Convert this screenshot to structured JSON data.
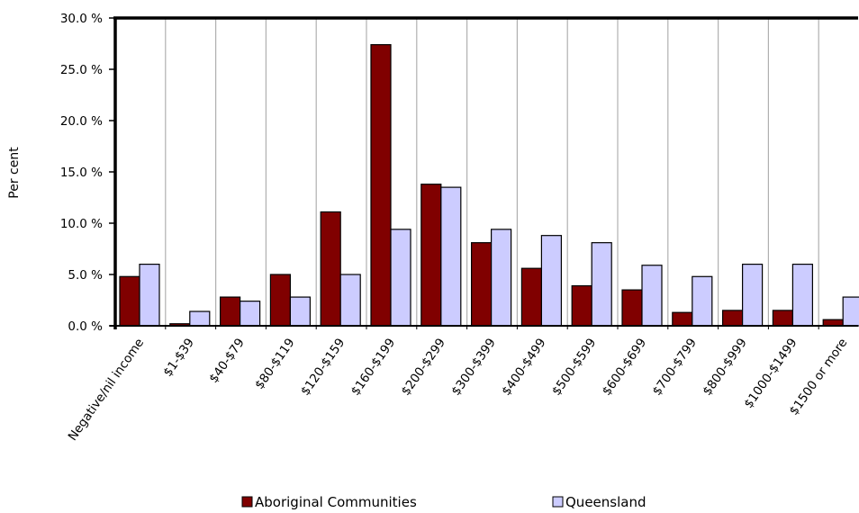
{
  "chart_data": {
    "type": "bar",
    "ylabel": "Per cent",
    "ylim": [
      0,
      30
    ],
    "ytick_step": 5,
    "ytick_labels": [
      "0.0 %",
      "5.0 %",
      "10.0 %",
      "15.0 %",
      "20.0 %",
      "25.0 %",
      "30.0 %"
    ],
    "grid": "vertical",
    "legend_position": "bottom",
    "categories": [
      "Negative/nil income",
      "$1-$39",
      "$40-$79",
      "$80-$119",
      "$120-$159",
      "$160-$199",
      "$200-$299",
      "$300-$399",
      "$400-$499",
      "$500-$599",
      "$600-$699",
      "$700-$799",
      "$800-$999",
      "$1000-$1499",
      "$1500 or more"
    ],
    "series": [
      {
        "name": "Aboriginal Communities",
        "color": "#800000",
        "values": [
          4.8,
          0.2,
          2.8,
          5.0,
          11.1,
          27.4,
          13.8,
          8.1,
          5.6,
          3.9,
          3.5,
          1.3,
          1.5,
          1.5,
          0.6
        ]
      },
      {
        "name": "Queensland",
        "color": "#ccccff",
        "values": [
          6.0,
          1.4,
          2.4,
          2.8,
          5.0,
          9.4,
          13.5,
          9.4,
          8.8,
          8.1,
          5.9,
          4.8,
          6.0,
          6.0,
          2.8
        ]
      }
    ]
  }
}
